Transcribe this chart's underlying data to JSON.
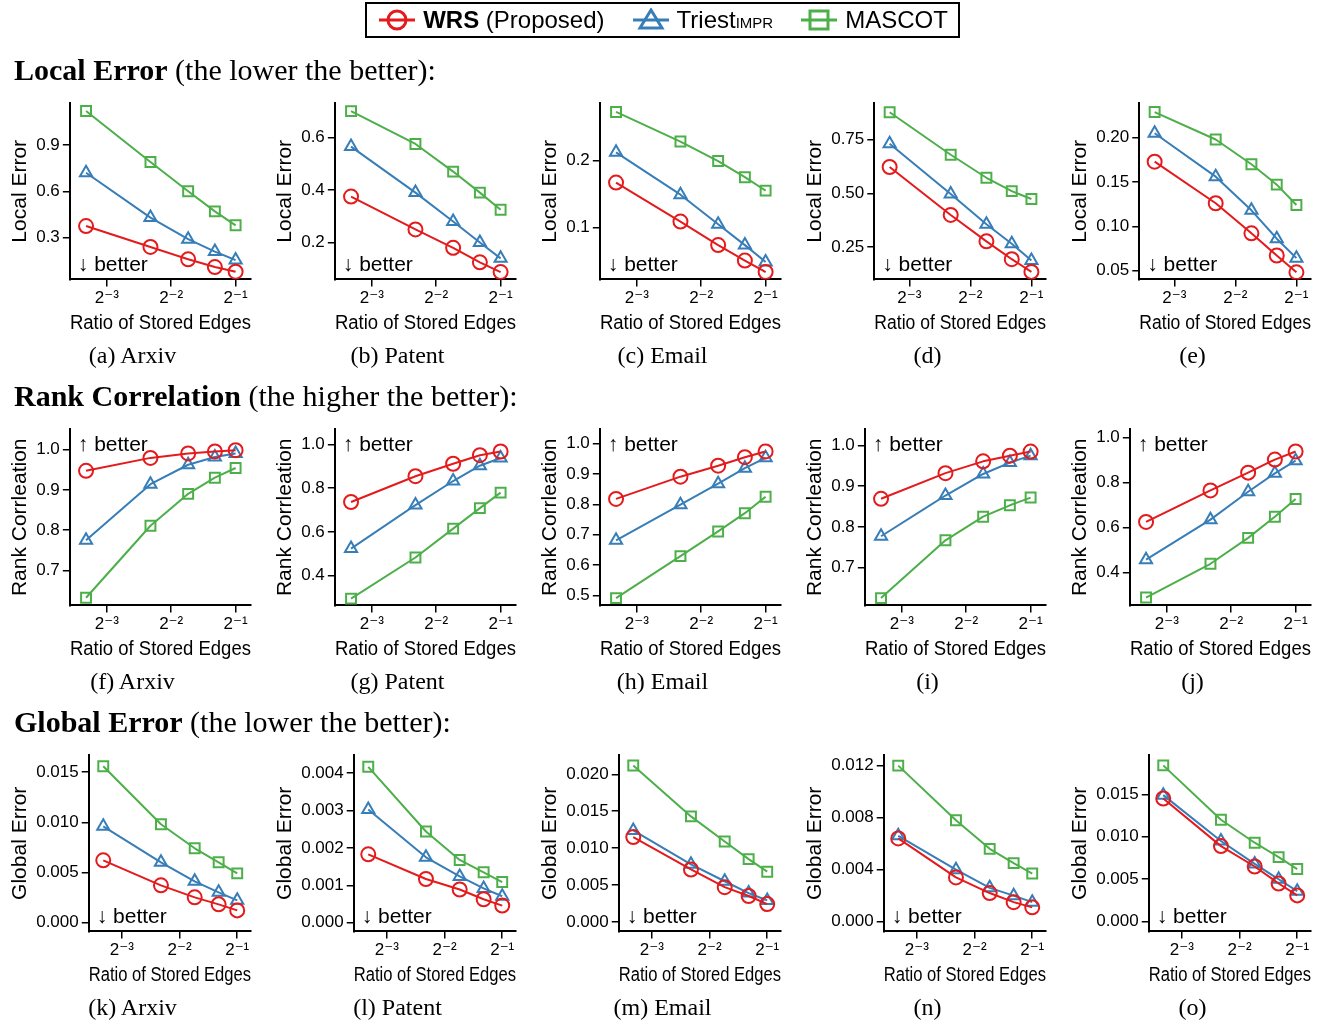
{
  "chart_data": [
    {
      "type": "line",
      "title": "(a) Arxiv",
      "subtitle": "Local Error (the lower the better):",
      "xlabel": "Ratio of Stored Edges",
      "ylabel": "Local Error",
      "log": "x",
      "grid": false,
      "legend": "top",
      "annotations": [
        "↓ better"
      ],
      "x": [
        0.1,
        0.2,
        0.3,
        0.4,
        0.5
      ],
      "xlim": [
        0.084,
        0.59
      ],
      "xticks": [
        {
          "value": 0.125,
          "label": "2⁻³"
        },
        {
          "value": 0.25,
          "label": "2⁻²"
        },
        {
          "value": 0.5,
          "label": "2⁻¹"
        }
      ],
      "ylim": [
        0.03,
        1.17
      ],
      "yticks": [
        0.3,
        0.6,
        0.9
      ],
      "series": [
        {
          "name": "WRS (Proposed)",
          "color": "#e41a1c",
          "marker": "circle",
          "values": [
            0.375,
            0.24,
            0.16,
            0.11,
            0.08
          ]
        },
        {
          "name": "Triest$_{IMPR}$",
          "color": "#377eb8",
          "marker": "triangle",
          "values": [
            0.72,
            0.43,
            0.29,
            0.21,
            0.155
          ]
        },
        {
          "name": "MASCOT",
          "color": "#4daf4a",
          "marker": "square",
          "values": [
            1.12,
            0.79,
            0.6,
            0.47,
            0.38
          ]
        }
      ]
    },
    {
      "type": "line",
      "title": "(b) Patent",
      "xlabel": "Ratio of Stored Edges",
      "ylabel": "Local Error",
      "log": "x",
      "grid": false,
      "annotations": [
        "↓ better"
      ],
      "x": [
        0.1,
        0.2,
        0.3,
        0.4,
        0.5
      ],
      "xlim": [
        0.084,
        0.59
      ],
      "xticks": [
        {
          "value": 0.125,
          "label": "2⁻³"
        },
        {
          "value": 0.25,
          "label": "2⁻²"
        },
        {
          "value": 0.5,
          "label": "2⁻¹"
        }
      ],
      "ylim": [
        0.06,
        0.73
      ],
      "yticks": [
        0.2,
        0.4,
        0.6
      ],
      "series": [
        {
          "color": "#e41a1c",
          "marker": "circle",
          "values": [
            0.375,
            0.25,
            0.18,
            0.125,
            0.088
          ]
        },
        {
          "color": "#377eb8",
          "marker": "triangle",
          "values": [
            0.565,
            0.39,
            0.28,
            0.2,
            0.14
          ]
        },
        {
          "color": "#4daf4a",
          "marker": "square",
          "values": [
            0.7,
            0.575,
            0.47,
            0.39,
            0.325
          ]
        }
      ]
    },
    {
      "type": "line",
      "title": "(c) Email",
      "xlabel": "Ratio of Stored Edges",
      "ylabel": "Local Error",
      "log": "x",
      "grid": false,
      "annotations": [
        "↓ better"
      ],
      "x": [
        0.1,
        0.2,
        0.3,
        0.4,
        0.5
      ],
      "xlim": [
        0.084,
        0.59
      ],
      "xticks": [
        {
          "value": 0.125,
          "label": "2⁻³"
        },
        {
          "value": 0.25,
          "label": "2⁻²"
        },
        {
          "value": 0.5,
          "label": "2⁻¹"
        }
      ],
      "ylim": [
        0.023,
        0.285
      ],
      "yticks": [
        0.1,
        0.2
      ],
      "series": [
        {
          "color": "#e41a1c",
          "marker": "circle",
          "values": [
            0.167,
            0.109,
            0.074,
            0.051,
            0.034
          ]
        },
        {
          "color": "#377eb8",
          "marker": "triangle",
          "values": [
            0.212,
            0.149,
            0.105,
            0.074,
            0.049
          ]
        },
        {
          "color": "#4daf4a",
          "marker": "square",
          "values": [
            0.272,
            0.228,
            0.199,
            0.175,
            0.155
          ]
        }
      ]
    },
    {
      "type": "line",
      "title": "(d)",
      "xlabel": "Ratio of Stored Edges",
      "ylabel": "Local Error",
      "log": "x",
      "grid": false,
      "annotations": [
        "↓ better"
      ],
      "x": [
        0.1,
        0.2,
        0.3,
        0.4,
        0.5
      ],
      "xlim": [
        0.084,
        0.59
      ],
      "xticks": [
        {
          "value": 0.125,
          "label": "2⁻³"
        },
        {
          "value": 0.25,
          "label": "2⁻²"
        },
        {
          "value": 0.5,
          "label": "2⁻¹"
        }
      ],
      "ylim": [
        0.1,
        0.92
      ],
      "yticks": [
        0.25,
        {
          "value": 0.5,
          "label": "0.50"
        },
        0.75
      ],
      "series": [
        {
          "color": "#e41a1c",
          "marker": "circle",
          "values": [
            0.623,
            0.4,
            0.277,
            0.194,
            0.135
          ]
        },
        {
          "color": "#377eb8",
          "marker": "triangle",
          "values": [
            0.731,
            0.497,
            0.357,
            0.266,
            0.188
          ]
        },
        {
          "color": "#4daf4a",
          "marker": "square",
          "values": [
            0.878,
            0.68,
            0.573,
            0.511,
            0.474
          ]
        }
      ]
    },
    {
      "type": "line",
      "title": "(e)",
      "xlabel": "Ratio of Stored Edges",
      "ylabel": "Local Error",
      "log": "x",
      "grid": false,
      "annotations": [
        "↓ better"
      ],
      "x": [
        0.1,
        0.2,
        0.3,
        0.4,
        0.5
      ],
      "xlim": [
        0.084,
        0.59
      ],
      "xticks": [
        {
          "value": 0.125,
          "label": "2⁻³"
        },
        {
          "value": 0.25,
          "label": "2⁻²"
        },
        {
          "value": 0.5,
          "label": "2⁻¹"
        }
      ],
      "ylim": [
        0.04,
        0.239
      ],
      "yticks": [
        0.05,
        {
          "value": 0.1,
          "label": "0.10"
        },
        0.15,
        {
          "value": 0.2,
          "label": "0.20"
        }
      ],
      "series": [
        {
          "color": "#e41a1c",
          "marker": "circle",
          "values": [
            0.173,
            0.126,
            0.092,
            0.067,
            0.048
          ]
        },
        {
          "color": "#377eb8",
          "marker": "triangle",
          "values": [
            0.205,
            0.156,
            0.118,
            0.086,
            0.064
          ]
        },
        {
          "color": "#4daf4a",
          "marker": "square",
          "values": [
            0.229,
            0.198,
            0.17,
            0.147,
            0.124
          ]
        }
      ]
    },
    {
      "type": "line",
      "title": "(f) Arxiv",
      "subtitle": "Rank Correlation (the higher the better):",
      "xlabel": "Ratio of Stored Edges",
      "ylabel": "Rank Corrleation",
      "log": "x",
      "grid": false,
      "annotations": [
        "↑ better"
      ],
      "x": [
        0.1,
        0.2,
        0.3,
        0.4,
        0.5
      ],
      "xlim": [
        0.084,
        0.59
      ],
      "xticks": [
        {
          "value": 0.125,
          "label": "2⁻³"
        },
        {
          "value": 0.25,
          "label": "2⁻²"
        },
        {
          "value": 0.5,
          "label": "2⁻¹"
        }
      ],
      "ylim": [
        0.614,
        1.05
      ],
      "yticks": [
        0.7,
        0.8,
        0.9,
        {
          "value": 1,
          "label": "1.0"
        }
      ],
      "series": [
        {
          "color": "#e41a1c",
          "marker": "circle",
          "values": [
            0.947,
            0.979,
            0.99,
            0.995,
            0.998
          ]
        },
        {
          "color": "#377eb8",
          "marker": "triangle",
          "values": [
            0.775,
            0.914,
            0.962,
            0.981,
            0.99
          ]
        },
        {
          "color": "#4daf4a",
          "marker": "square",
          "values": [
            0.633,
            0.811,
            0.89,
            0.93,
            0.954
          ]
        }
      ]
    },
    {
      "type": "line",
      "title": "(g) Patent",
      "xlabel": "Ratio of Stored Edges",
      "ylabel": "Rank Corrleation",
      "log": "x",
      "grid": false,
      "annotations": [
        "↑ better"
      ],
      "x": [
        0.1,
        0.2,
        0.3,
        0.4,
        0.5
      ],
      "xlim": [
        0.084,
        0.59
      ],
      "xticks": [
        {
          "value": 0.125,
          "label": "2⁻³"
        },
        {
          "value": 0.25,
          "label": "2⁻²"
        },
        {
          "value": 0.5,
          "label": "2⁻¹"
        }
      ],
      "ylim": [
        0.264,
        1.07
      ],
      "yticks": [
        0.4,
        0.6,
        0.8,
        {
          "value": 1,
          "label": "1.0"
        }
      ],
      "series": [
        {
          "color": "#e41a1c",
          "marker": "circle",
          "values": [
            0.737,
            0.855,
            0.912,
            0.951,
            0.968
          ]
        },
        {
          "color": "#377eb8",
          "marker": "triangle",
          "values": [
            0.524,
            0.723,
            0.833,
            0.903,
            0.938
          ]
        },
        {
          "color": "#4daf4a",
          "marker": "square",
          "values": [
            0.295,
            0.483,
            0.615,
            0.709,
            0.78
          ]
        }
      ]
    },
    {
      "type": "line",
      "title": "(h) Email",
      "xlabel": "Ratio of Stored Edges",
      "ylabel": "Rank Corrleation",
      "log": "x",
      "grid": false,
      "annotations": [
        "↑ better"
      ],
      "x": [
        0.1,
        0.2,
        0.3,
        0.4,
        0.5
      ],
      "xlim": [
        0.084,
        0.59
      ],
      "xticks": [
        {
          "value": 0.125,
          "label": "2⁻³"
        },
        {
          "value": 0.25,
          "label": "2⁻²"
        },
        {
          "value": 0.5,
          "label": "2⁻¹"
        }
      ],
      "ylim": [
        0.468,
        1.047
      ],
      "yticks": [
        0.5,
        0.6,
        0.7,
        0.8,
        0.9,
        {
          "value": 1,
          "label": "1.0"
        }
      ],
      "series": [
        {
          "color": "#e41a1c",
          "marker": "circle",
          "values": [
            0.818,
            0.891,
            0.927,
            0.955,
            0.974
          ]
        },
        {
          "color": "#377eb8",
          "marker": "triangle",
          "values": [
            0.682,
            0.799,
            0.868,
            0.919,
            0.953
          ]
        },
        {
          "color": "#4daf4a",
          "marker": "square",
          "values": [
            0.492,
            0.63,
            0.711,
            0.771,
            0.825
          ]
        }
      ]
    },
    {
      "type": "line",
      "title": "(i)",
      "xlabel": "Ratio of Stored Edges",
      "ylabel": "Rank Corrleation",
      "log": "x",
      "grid": false,
      "annotations": [
        "↑ better"
      ],
      "x": [
        0.1,
        0.2,
        0.3,
        0.4,
        0.5
      ],
      "xlim": [
        0.084,
        0.59
      ],
      "xticks": [
        {
          "value": 0.125,
          "label": "2⁻³"
        },
        {
          "value": 0.25,
          "label": "2⁻²"
        },
        {
          "value": 0.5,
          "label": "2⁻¹"
        }
      ],
      "ylim": [
        0.607,
        1.04
      ],
      "yticks": [
        0.7,
        0.8,
        0.9,
        {
          "value": 1,
          "label": "1.0"
        }
      ],
      "series": [
        {
          "color": "#e41a1c",
          "marker": "circle",
          "values": [
            0.869,
            0.932,
            0.961,
            0.975,
            0.985
          ]
        },
        {
          "color": "#377eb8",
          "marker": "triangle",
          "values": [
            0.777,
            0.877,
            0.93,
            0.958,
            0.975
          ]
        },
        {
          "color": "#4daf4a",
          "marker": "square",
          "values": [
            0.625,
            0.767,
            0.825,
            0.853,
            0.872
          ]
        }
      ]
    },
    {
      "type": "line",
      "title": "(j)",
      "xlabel": "Ratio of Stored Edges",
      "ylabel": "Rank Corrleation",
      "log": "x",
      "grid": false,
      "annotations": [
        "↑ better"
      ],
      "x": [
        0.1,
        0.2,
        0.3,
        0.4,
        0.5
      ],
      "xlim": [
        0.084,
        0.59
      ],
      "xticks": [
        {
          "value": 0.125,
          "label": "2⁻³"
        },
        {
          "value": 0.25,
          "label": "2⁻²"
        },
        {
          "value": 0.5,
          "label": "2⁻¹"
        }
      ],
      "ylim": [
        0.255,
        1.038
      ],
      "yticks": [
        0.4,
        0.6,
        0.8,
        {
          "value": 1,
          "label": "1.0"
        }
      ],
      "series": [
        {
          "color": "#e41a1c",
          "marker": "circle",
          "values": [
            0.626,
            0.766,
            0.845,
            0.903,
            0.939
          ]
        },
        {
          "color": "#377eb8",
          "marker": "triangle",
          "values": [
            0.458,
            0.636,
            0.76,
            0.842,
            0.898
          ]
        },
        {
          "color": "#4daf4a",
          "marker": "square",
          "values": [
            0.29,
            0.44,
            0.555,
            0.649,
            0.728
          ]
        }
      ]
    },
    {
      "type": "line",
      "title": "(k) Arxiv",
      "subtitle": "Global Error (the lower the better):",
      "xlabel": "Ratio of Stored Edges",
      "ylabel": "Global Error",
      "log": "x",
      "grid": false,
      "annotations": [
        "↓ better"
      ],
      "x": [
        0.1,
        0.2,
        0.3,
        0.4,
        0.5
      ],
      "xlim": [
        0.084,
        0.59
      ],
      "xticks": [
        {
          "value": 0.125,
          "label": "2⁻³"
        },
        {
          "value": 0.25,
          "label": "2⁻²"
        },
        {
          "value": 0.5,
          "label": "2⁻¹"
        }
      ],
      "ylim": [
        -0.0009,
        0.0167
      ],
      "yticks": [
        {
          "value": 0,
          "label": "0.000"
        },
        0.005,
        {
          "value": 0.01,
          "label": "0.010"
        },
        0.015
      ],
      "series": [
        {
          "color": "#e41a1c",
          "marker": "circle",
          "values": [
            0.0062,
            0.0037,
            0.0025,
            0.0018,
            0.0012
          ]
        },
        {
          "color": "#377eb8",
          "marker": "triangle",
          "values": [
            0.0096,
            0.006,
            0.0041,
            0.003,
            0.0022
          ]
        },
        {
          "color": "#4daf4a",
          "marker": "square",
          "values": [
            0.0156,
            0.0098,
            0.0074,
            0.006,
            0.0049
          ]
        }
      ]
    },
    {
      "type": "line",
      "title": "(l) Patent",
      "xlabel": "Ratio of Stored Edges",
      "ylabel": "Global Error",
      "log": "x",
      "grid": false,
      "annotations": [
        "↓ better"
      ],
      "x": [
        0.1,
        0.2,
        0.3,
        0.4,
        0.5
      ],
      "xlim": [
        0.084,
        0.59
      ],
      "xticks": [
        {
          "value": 0.125,
          "label": "2⁻³"
        },
        {
          "value": 0.25,
          "label": "2⁻²"
        },
        {
          "value": 0.5,
          "label": "2⁻¹"
        }
      ],
      "ylim": [
        -0.00023,
        0.00448
      ],
      "yticks": [
        {
          "value": 0,
          "label": "0.000"
        },
        0.001,
        0.002,
        0.003,
        0.004
      ],
      "series": [
        {
          "color": "#e41a1c",
          "marker": "circle",
          "values": [
            0.00183,
            0.00117,
            0.00089,
            0.00063,
            0.00046
          ]
        },
        {
          "color": "#377eb8",
          "marker": "triangle",
          "values": [
            0.00303,
            0.00175,
            0.00124,
            0.00092,
            0.00071
          ]
        },
        {
          "color": "#4daf4a",
          "marker": "square",
          "values": [
            0.00417,
            0.00244,
            0.00168,
            0.00135,
            0.00109
          ]
        }
      ]
    },
    {
      "type": "line",
      "title": "(m) Email",
      "xlabel": "Ratio of Stored Edges",
      "ylabel": "Global Error",
      "log": "x",
      "grid": false,
      "annotations": [
        "↓ better"
      ],
      "x": [
        0.1,
        0.2,
        0.3,
        0.4,
        0.5
      ],
      "xlim": [
        0.084,
        0.59
      ],
      "xticks": [
        {
          "value": 0.125,
          "label": "2⁻³"
        },
        {
          "value": 0.25,
          "label": "2⁻²"
        },
        {
          "value": 0.5,
          "label": "2⁻¹"
        }
      ],
      "ylim": [
        -0.0013,
        0.0226
      ],
      "yticks": [
        {
          "value": 0,
          "label": "0.000"
        },
        0.005,
        {
          "value": 0.01,
          "label": "0.010"
        },
        0.015,
        {
          "value": 0.02,
          "label": "0.020"
        }
      ],
      "series": [
        {
          "color": "#e41a1c",
          "marker": "circle",
          "values": [
            0.0115,
            0.0071,
            0.0047,
            0.0035,
            0.0024
          ]
        },
        {
          "color": "#377eb8",
          "marker": "triangle",
          "values": [
            0.0124,
            0.0078,
            0.0055,
            0.0039,
            0.0029
          ]
        },
        {
          "color": "#4daf4a",
          "marker": "square",
          "values": [
            0.0212,
            0.0143,
            0.0109,
            0.0085,
            0.0068
          ]
        }
      ]
    },
    {
      "type": "line",
      "title": "(n)",
      "xlabel": "Ratio of Stored Edges",
      "ylabel": "Global Error",
      "log": "x",
      "grid": false,
      "annotations": [
        "↓ better"
      ],
      "x": [
        0.1,
        0.2,
        0.3,
        0.4,
        0.5
      ],
      "xlim": [
        0.084,
        0.59
      ],
      "xticks": [
        {
          "value": 0.125,
          "label": "2⁻³"
        },
        {
          "value": 0.25,
          "label": "2⁻²"
        },
        {
          "value": 0.5,
          "label": "2⁻¹"
        }
      ],
      "ylim": [
        -0.00075,
        0.0128
      ],
      "yticks": [
        {
          "value": 0,
          "label": "0.000"
        },
        0.004,
        0.008,
        0.012
      ],
      "series": [
        {
          "color": "#e41a1c",
          "marker": "circle",
          "values": [
            0.0064,
            0.0034,
            0.0022,
            0.0015,
            0.0011
          ]
        },
        {
          "color": "#377eb8",
          "marker": "triangle",
          "values": [
            0.0066,
            0.004,
            0.0026,
            0.002,
            0.0015
          ]
        },
        {
          "color": "#4daf4a",
          "marker": "square",
          "values": [
            0.012,
            0.0078,
            0.0056,
            0.0045,
            0.0037
          ]
        }
      ]
    },
    {
      "type": "line",
      "title": "(o)",
      "xlabel": "Ratio of Stored Edges",
      "ylabel": "Global Error",
      "log": "x",
      "grid": false,
      "annotations": [
        "↓ better"
      ],
      "x": [
        0.1,
        0.2,
        0.3,
        0.4,
        0.5
      ],
      "xlim": [
        0.084,
        0.59
      ],
      "xticks": [
        {
          "value": 0.125,
          "label": "2⁻³"
        },
        {
          "value": 0.25,
          "label": "2⁻²"
        },
        {
          "value": 0.5,
          "label": "2⁻¹"
        }
      ],
      "ylim": [
        -0.00114,
        0.0196
      ],
      "yticks": [
        {
          "value": 0,
          "label": "0.000"
        },
        0.005,
        {
          "value": 0.01,
          "label": "0.010"
        },
        0.015
      ],
      "series": [
        {
          "color": "#e41a1c",
          "marker": "circle",
          "values": [
            0.0145,
            0.0089,
            0.0065,
            0.0045,
            0.0031
          ]
        },
        {
          "color": "#377eb8",
          "marker": "triangle",
          "values": [
            0.0149,
            0.0095,
            0.0068,
            0.005,
            0.0036
          ]
        },
        {
          "color": "#4daf4a",
          "marker": "square",
          "values": [
            0.0184,
            0.012,
            0.0093,
            0.0076,
            0.0062
          ]
        }
      ]
    }
  ]
}
